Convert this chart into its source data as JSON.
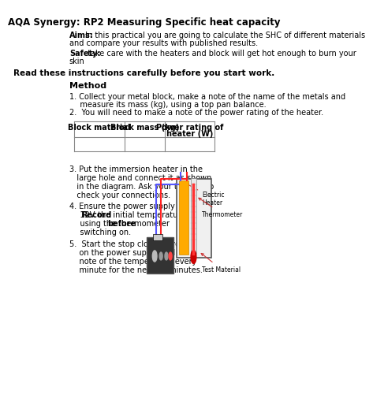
{
  "title": "AQA Synergy: RP2 Measuring Specific heat capacity",
  "aims_bold": "Aims:",
  "aims_text": " In this practical you are going to calculate the SHC of different materials",
  "aims_text2": "and compare your results with published results.",
  "safety_bold": "Safety:",
  "safety_text": " take care with the heaters and block will get hot enough to burn your",
  "safety_text2": "skin",
  "read_note": "Read these instructions carefully before you start work.",
  "method_title": "Method",
  "step1a": "1. Collect your metal block, make a note of the name of the metals and",
  "step1b": "   measure its mass (kg), using a top pan balance.",
  "step2": "2.  You will need to make a note of the power rating of the heater.",
  "table_headers": [
    "Block material",
    "Block mass (kg)",
    "Power rating of",
    "heater (W)"
  ],
  "step3a": "3. Put the immersion heater in the",
  "step3b": "   large hole and connect it as shown",
  "step3c": "   in the diagram. Ask your teacher to",
  "step3d": "   check your connections.",
  "step4a": "4. Ensure the power supply is set to",
  "step4b_pre": "   12V. ",
  "step4b_bold": "Record",
  "step4b_post": " the initial temperature",
  "step4c_pre": "   using the thermometer ",
  "step4c_bold": "before",
  "step4d": "   switching on.",
  "step5a": "5.  Start the stop clock as you switch",
  "step5b": "    on the power supply and make a",
  "step5c": "    note of the temperature every",
  "step5d": "    minute for the next 10 minutes.",
  "label_electric": "Electric\nHeater",
  "label_thermo": "Thermometer",
  "label_test": "Test Material",
  "bg_color": "#ffffff",
  "text_color": "#000000",
  "table_line_color": "#888888",
  "heater_color": "#ffaa00",
  "heater_edge": "#cc8800",
  "wire_blue": "#5555ff",
  "wire_red": "#ff2222",
  "ps_face": "#333333",
  "ps_edge": "#555555",
  "block_face": "#f0f0f0",
  "block_edge": "#555555",
  "thermo_face": "#e8e8e8",
  "thermo_edge": "#888888",
  "arrow_color": "#cc3333"
}
